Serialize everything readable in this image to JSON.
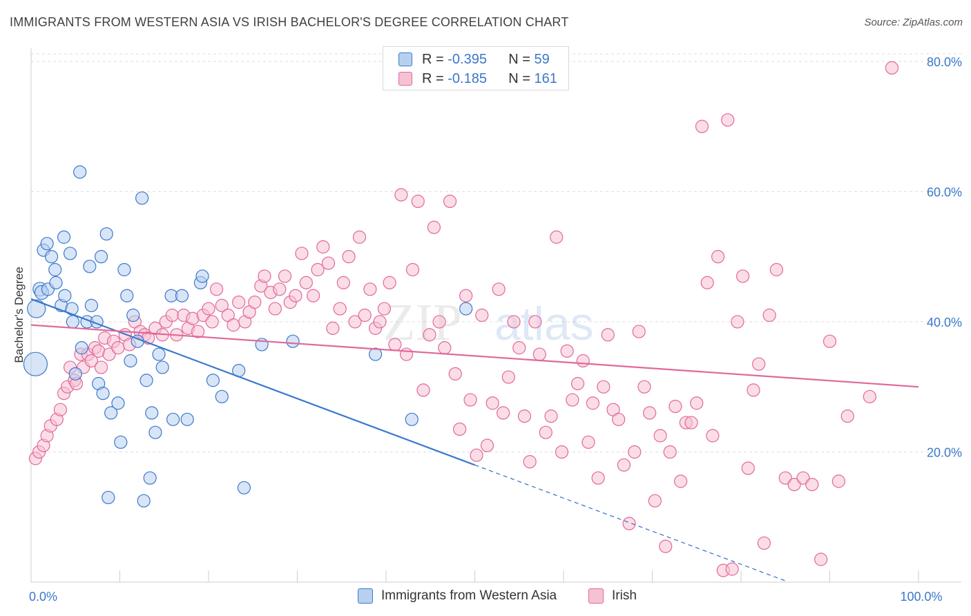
{
  "title": "IMMIGRANTS FROM WESTERN ASIA VS IRISH BACHELOR'S DEGREE CORRELATION CHART",
  "source": "Source: ZipAtlas.com",
  "watermark": {
    "zip": "ZIP",
    "atlas": "atlas"
  },
  "colors": {
    "blue": "#3a78c9",
    "blue_fill": "#b8d0f0",
    "pink": "#e0689a",
    "pink_fill": "#f7c1d4",
    "grid": "#dddddd"
  },
  "legend": {
    "rows": [
      {
        "r_label": "R =",
        "r_value": "-0.395",
        "n_label": "N =",
        "n_value": "59"
      },
      {
        "r_label": "R =",
        "r_value": "-0.185",
        "n_label": "N =",
        "n_value": "161"
      }
    ]
  },
  "chart_data": {
    "type": "scatter",
    "title": "IMMIGRANTS FROM WESTERN ASIA VS IRISH BACHELOR'S DEGREE CORRELATION CHART",
    "xlabel": "",
    "ylabel": "Bachelor's Degree",
    "xlim": [
      0,
      100
    ],
    "ylim": [
      0,
      82
    ],
    "x_tick_labels": [
      {
        "value": 0,
        "label": "0.0%"
      },
      {
        "value": 100,
        "label": "100.0%"
      }
    ],
    "y_tick_labels": [
      {
        "value": 20,
        "label": "20.0%"
      },
      {
        "value": 40,
        "label": "40.0%"
      },
      {
        "value": 60,
        "label": "60.0%"
      },
      {
        "value": 80,
        "label": "80.0%"
      }
    ],
    "grid": true,
    "legend_position": "top-center",
    "series": [
      {
        "name": "Immigrants from Western Asia",
        "color": "#3a78c9",
        "trend": {
          "x_start": 0,
          "y_start": 43.5,
          "x_end": 50,
          "y_end": 18.0,
          "dashed_to_x": 85,
          "dashed_to_y": 0.2
        },
        "points": [
          [
            0.5,
            33.5
          ],
          [
            0.6,
            42.0
          ],
          [
            1.0,
            45.0
          ],
          [
            1.2,
            44.5
          ],
          [
            1.4,
            51.0
          ],
          [
            1.8,
            52.0
          ],
          [
            1.9,
            45.0
          ],
          [
            2.3,
            50.0
          ],
          [
            2.7,
            48.0
          ],
          [
            2.8,
            46.0
          ],
          [
            3.4,
            42.5
          ],
          [
            3.7,
            53.0
          ],
          [
            3.8,
            44.0
          ],
          [
            4.4,
            50.5
          ],
          [
            4.6,
            42.0
          ],
          [
            4.7,
            40.0
          ],
          [
            5.0,
            32.0
          ],
          [
            5.5,
            63.0
          ],
          [
            5.7,
            36.0
          ],
          [
            6.3,
            40.0
          ],
          [
            6.6,
            48.5
          ],
          [
            6.8,
            42.5
          ],
          [
            7.4,
            40.0
          ],
          [
            7.6,
            30.5
          ],
          [
            7.9,
            50.0
          ],
          [
            8.1,
            29.0
          ],
          [
            8.5,
            53.5
          ],
          [
            8.7,
            13.0
          ],
          [
            9.0,
            26.0
          ],
          [
            9.8,
            27.5
          ],
          [
            10.1,
            21.5
          ],
          [
            10.5,
            48.0
          ],
          [
            10.8,
            44.0
          ],
          [
            11.2,
            34.0
          ],
          [
            11.5,
            41.0
          ],
          [
            12.0,
            37.0
          ],
          [
            12.5,
            59.0
          ],
          [
            12.7,
            12.5
          ],
          [
            13.0,
            31.0
          ],
          [
            13.4,
            16.0
          ],
          [
            13.6,
            26.0
          ],
          [
            14.0,
            23.0
          ],
          [
            14.4,
            35.0
          ],
          [
            14.8,
            33.0
          ],
          [
            15.8,
            44.0
          ],
          [
            16.0,
            25.0
          ],
          [
            17.0,
            44.0
          ],
          [
            17.6,
            25.0
          ],
          [
            19.1,
            46.0
          ],
          [
            19.3,
            47.0
          ],
          [
            20.5,
            31.0
          ],
          [
            21.5,
            28.5
          ],
          [
            23.4,
            32.5
          ],
          [
            24.0,
            14.5
          ],
          [
            26.0,
            36.5
          ],
          [
            29.5,
            37.0
          ],
          [
            38.8,
            35.0
          ],
          [
            42.9,
            25.0
          ],
          [
            49.0,
            42.0
          ]
        ]
      },
      {
        "name": "Irish",
        "color": "#e0689a",
        "trend": {
          "x_start": 0,
          "y_start": 39.5,
          "x_end": 100,
          "y_end": 30.0
        },
        "points": [
          [
            0.5,
            19.0
          ],
          [
            0.9,
            20.0
          ],
          [
            1.4,
            21.0
          ],
          [
            1.8,
            22.5
          ],
          [
            2.2,
            24.0
          ],
          [
            2.9,
            25.0
          ],
          [
            3.3,
            26.5
          ],
          [
            3.7,
            29.0
          ],
          [
            4.1,
            30.0
          ],
          [
            4.4,
            33.0
          ],
          [
            4.9,
            31.0
          ],
          [
            5.1,
            30.5
          ],
          [
            5.6,
            35.0
          ],
          [
            5.9,
            33.0
          ],
          [
            6.4,
            35.0
          ],
          [
            6.8,
            34.0
          ],
          [
            7.2,
            36.0
          ],
          [
            7.6,
            35.5
          ],
          [
            7.9,
            33.0
          ],
          [
            8.3,
            37.5
          ],
          [
            8.8,
            35.0
          ],
          [
            9.3,
            37.0
          ],
          [
            9.8,
            36.0
          ],
          [
            10.6,
            38.0
          ],
          [
            11.1,
            36.5
          ],
          [
            11.7,
            40.0
          ],
          [
            12.3,
            38.5
          ],
          [
            12.8,
            38.0
          ],
          [
            13.2,
            37.5
          ],
          [
            14.0,
            39.0
          ],
          [
            14.8,
            38.0
          ],
          [
            15.2,
            40.0
          ],
          [
            15.9,
            41.0
          ],
          [
            16.4,
            38.0
          ],
          [
            17.2,
            41.0
          ],
          [
            17.7,
            39.0
          ],
          [
            18.2,
            40.5
          ],
          [
            18.8,
            38.5
          ],
          [
            19.4,
            41.0
          ],
          [
            20.0,
            42.0
          ],
          [
            20.4,
            40.0
          ],
          [
            20.9,
            45.0
          ],
          [
            21.5,
            42.5
          ],
          [
            22.2,
            41.0
          ],
          [
            22.8,
            39.5
          ],
          [
            23.4,
            43.0
          ],
          [
            24.1,
            40.0
          ],
          [
            24.6,
            41.5
          ],
          [
            25.2,
            43.0
          ],
          [
            25.9,
            45.5
          ],
          [
            26.3,
            47.0
          ],
          [
            27.0,
            44.5
          ],
          [
            27.5,
            42.0
          ],
          [
            28.0,
            45.0
          ],
          [
            28.6,
            47.0
          ],
          [
            29.2,
            43.0
          ],
          [
            29.8,
            44.0
          ],
          [
            30.5,
            50.5
          ],
          [
            31.0,
            46.0
          ],
          [
            31.8,
            44.0
          ],
          [
            32.3,
            48.0
          ],
          [
            32.9,
            51.5
          ],
          [
            33.5,
            49.0
          ],
          [
            34.0,
            39.0
          ],
          [
            34.8,
            42.0
          ],
          [
            35.2,
            46.0
          ],
          [
            35.8,
            50.0
          ],
          [
            36.5,
            40.0
          ],
          [
            37.0,
            53.0
          ],
          [
            37.6,
            41.0
          ],
          [
            38.2,
            45.0
          ],
          [
            38.8,
            39.0
          ],
          [
            39.3,
            40.0
          ],
          [
            39.8,
            42.0
          ],
          [
            40.4,
            46.0
          ],
          [
            41.0,
            36.5
          ],
          [
            41.7,
            59.5
          ],
          [
            42.3,
            35.0
          ],
          [
            43.0,
            48.0
          ],
          [
            43.6,
            58.5
          ],
          [
            44.2,
            29.5
          ],
          [
            44.9,
            38.0
          ],
          [
            45.4,
            54.5
          ],
          [
            46.0,
            40.0
          ],
          [
            46.6,
            36.0
          ],
          [
            47.2,
            58.5
          ],
          [
            47.8,
            32.0
          ],
          [
            48.3,
            23.5
          ],
          [
            49.0,
            44.0
          ],
          [
            49.5,
            28.0
          ],
          [
            50.2,
            19.5
          ],
          [
            50.8,
            41.0
          ],
          [
            51.4,
            21.0
          ],
          [
            52.0,
            27.5
          ],
          [
            52.7,
            45.0
          ],
          [
            53.2,
            26.0
          ],
          [
            53.8,
            31.5
          ],
          [
            54.4,
            40.0
          ],
          [
            55.0,
            36.0
          ],
          [
            55.6,
            25.5
          ],
          [
            56.2,
            18.5
          ],
          [
            56.8,
            40.0
          ],
          [
            57.3,
            35.0
          ],
          [
            58.0,
            23.0
          ],
          [
            58.6,
            25.5
          ],
          [
            59.2,
            53.0
          ],
          [
            59.8,
            20.0
          ],
          [
            60.4,
            35.5
          ],
          [
            61.0,
            28.0
          ],
          [
            61.6,
            30.5
          ],
          [
            62.2,
            34.0
          ],
          [
            62.8,
            21.5
          ],
          [
            63.3,
            27.5
          ],
          [
            63.9,
            16.0
          ],
          [
            64.5,
            30.0
          ],
          [
            65.0,
            38.0
          ],
          [
            65.6,
            26.5
          ],
          [
            66.2,
            25.0
          ],
          [
            66.8,
            18.0
          ],
          [
            67.4,
            9.0
          ],
          [
            68.0,
            20.0
          ],
          [
            68.5,
            38.5
          ],
          [
            69.1,
            30.0
          ],
          [
            69.7,
            26.0
          ],
          [
            70.3,
            12.5
          ],
          [
            70.9,
            22.5
          ],
          [
            71.5,
            5.5
          ],
          [
            72.0,
            20.0
          ],
          [
            72.6,
            27.0
          ],
          [
            73.2,
            15.5
          ],
          [
            73.8,
            24.5
          ],
          [
            74.4,
            24.5
          ],
          [
            75.0,
            27.5
          ],
          [
            75.6,
            70.0
          ],
          [
            76.2,
            46.0
          ],
          [
            76.8,
            22.5
          ],
          [
            77.4,
            50.0
          ],
          [
            78.0,
            1.8
          ],
          [
            78.5,
            71.0
          ],
          [
            79.0,
            2.0
          ],
          [
            79.6,
            40.0
          ],
          [
            80.2,
            47.0
          ],
          [
            80.8,
            17.5
          ],
          [
            81.4,
            29.5
          ],
          [
            82.0,
            33.5
          ],
          [
            82.6,
            6.0
          ],
          [
            83.2,
            41.0
          ],
          [
            84.0,
            48.0
          ],
          [
            85.0,
            16.0
          ],
          [
            86.0,
            15.0
          ],
          [
            87.0,
            16.0
          ],
          [
            88.0,
            15.0
          ],
          [
            89.0,
            3.5
          ],
          [
            90.0,
            37.0
          ],
          [
            91.0,
            15.5
          ],
          [
            92.0,
            25.5
          ],
          [
            94.5,
            28.5
          ],
          [
            97.0,
            79.0
          ]
        ]
      }
    ]
  }
}
